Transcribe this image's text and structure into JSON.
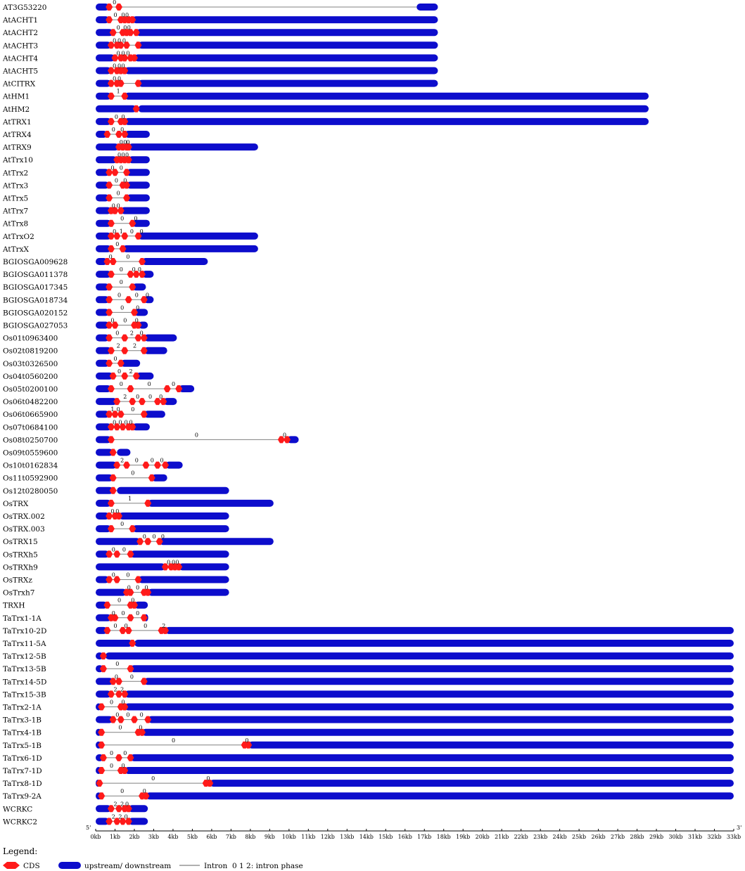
{
  "chart_data": {
    "type": "gene_structure",
    "x_unit": "kb",
    "xlim": [
      0,
      33
    ],
    "x_ticks": [
      "0kb",
      "1kb",
      "2kb",
      "3kb",
      "4kb",
      "5kb",
      "6kb",
      "7kb",
      "8kb",
      "9kb",
      "10kb",
      "11kb",
      "12kb",
      "13kb",
      "14kb",
      "15kb",
      "16kb",
      "17kb",
      "18kb",
      "19kb",
      "20kb",
      "21kb",
      "22kb",
      "23kb",
      "24kb",
      "25kb",
      "26kb",
      "27kb",
      "28kb",
      "29kb",
      "30kb",
      "31kb",
      "32kb",
      "33kb"
    ],
    "five_prime_label": "5'",
    "three_prime_label": "3'",
    "genes": [
      {
        "name": "AT3G53220",
        "length": 17.7,
        "utr5": 0.7,
        "utr3": 16.6,
        "cds": [
          0.7,
          1.2
        ],
        "phases": [
          "0"
        ]
      },
      {
        "name": "AtACHT1",
        "length": 17.7,
        "utr5": 0.7,
        "utr3": 1.9,
        "cds": [
          0.7,
          1.3,
          1.5,
          1.7,
          1.9
        ],
        "phases": [
          "0",
          "0",
          "0"
        ]
      },
      {
        "name": "AtACHT2",
        "length": 17.7,
        "utr5": 0.9,
        "utr3": 2.1,
        "cds": [
          0.9,
          1.4,
          1.6,
          1.8,
          2.1
        ],
        "phases": [
          "0",
          "0",
          "0"
        ]
      },
      {
        "name": "AtACHT3",
        "length": 17.7,
        "utr5": 0.8,
        "utr3": 2.2,
        "cds": [
          0.8,
          1.1,
          1.3,
          1.6,
          2.2
        ],
        "phases": [
          "0",
          "0",
          "0"
        ]
      },
      {
        "name": "AtACHT4",
        "length": 17.7,
        "utr5": 1.0,
        "utr3": 2.0,
        "cds": [
          1.0,
          1.3,
          1.5,
          1.8,
          2.0
        ],
        "phases": [
          "0",
          "0",
          "0"
        ]
      },
      {
        "name": "AtACHT5",
        "length": 17.7,
        "utr5": 0.8,
        "utr3": 1.5,
        "cds": [
          0.8,
          1.1,
          1.3,
          1.5
        ],
        "phases": [
          "0",
          "0",
          "0"
        ]
      },
      {
        "name": "AtCITRX",
        "length": 17.7,
        "utr5": 0.8,
        "utr3": 2.2,
        "cds": [
          0.8,
          1.1,
          1.3,
          2.2
        ],
        "phases": [
          "0",
          "0"
        ]
      },
      {
        "name": "AtHM1",
        "length": 28.6,
        "utr5": 0.8,
        "utr3": 1.5,
        "cds": [
          0.8,
          1.5
        ],
        "phases": [
          "1"
        ]
      },
      {
        "name": "AtHM2",
        "length": 28.6,
        "utr5": 2.1,
        "utr3": 2.2,
        "cds": [
          2.1
        ],
        "phases": []
      },
      {
        "name": "AtTRX1",
        "length": 28.6,
        "utr5": 0.8,
        "utr3": 1.5,
        "cds": [
          0.8,
          1.3,
          1.5
        ],
        "phases": [
          "0",
          "0"
        ]
      },
      {
        "name": "AtTRX4",
        "length": 2.8,
        "utr5": 0.6,
        "utr3": 1.5,
        "cds": [
          0.6,
          1.2,
          1.5
        ],
        "phases": [
          "0",
          "0"
        ]
      },
      {
        "name": "AtTRX9",
        "length": 8.4,
        "utr5": 1.2,
        "utr3": 1.7,
        "cds": [
          1.2,
          1.4,
          1.6,
          1.7
        ],
        "phases": [
          "0",
          "0",
          "0"
        ]
      },
      {
        "name": "AtTrx10",
        "length": 2.8,
        "utr5": 1.1,
        "utr3": 1.7,
        "cds": [
          1.1,
          1.3,
          1.5,
          1.7
        ],
        "phases": [
          "0",
          "0",
          "0"
        ]
      },
      {
        "name": "AtTrx2",
        "length": 2.8,
        "utr5": 0.7,
        "utr3": 1.6,
        "cds": [
          0.7,
          1.0,
          1.6
        ],
        "phases": [
          "0",
          "0"
        ]
      },
      {
        "name": "AtTrx3",
        "length": 2.8,
        "utr5": 0.7,
        "utr3": 1.6,
        "cds": [
          0.7,
          1.4,
          1.6
        ],
        "phases": [
          "0",
          "0"
        ]
      },
      {
        "name": "AtTrx5",
        "length": 2.8,
        "utr5": 0.7,
        "utr3": 1.6,
        "cds": [
          0.7,
          1.6
        ],
        "phases": [
          "0"
        ]
      },
      {
        "name": "AtTrx7",
        "length": 2.8,
        "utr5": 0.8,
        "utr3": 1.3,
        "cds": [
          0.8,
          1.0,
          1.3
        ],
        "phases": [
          "0",
          "0"
        ]
      },
      {
        "name": "AtTrx8",
        "length": 2.8,
        "utr5": 0.8,
        "utr3": 1.9,
        "cds": [
          0.8,
          1.9
        ],
        "phases": [
          "0",
          "0"
        ]
      },
      {
        "name": "AtTrxO2",
        "length": 8.4,
        "utr5": 0.8,
        "utr3": 2.2,
        "cds": [
          0.8,
          1.1,
          1.5,
          2.2
        ],
        "phases": [
          "0",
          "1",
          "0",
          "0"
        ]
      },
      {
        "name": "AtTrxX",
        "length": 8.4,
        "utr5": 0.8,
        "utr3": 1.4,
        "cds": [
          0.8,
          1.4
        ],
        "phases": [
          "0"
        ]
      },
      {
        "name": "BGIOSGA009628",
        "length": 5.8,
        "utr5": 0.6,
        "utr3": 2.4,
        "cds": [
          0.6,
          0.9,
          2.4
        ],
        "phases": [
          "0",
          "0"
        ]
      },
      {
        "name": "BGIOSGA011378",
        "length": 3.0,
        "utr5": 0.8,
        "utr3": 2.4,
        "cds": [
          0.8,
          1.8,
          2.1,
          2.4
        ],
        "phases": [
          "0",
          "0",
          "0"
        ]
      },
      {
        "name": "BGIOSGA017345",
        "length": 2.6,
        "utr5": 0.7,
        "utr3": 1.9,
        "cds": [
          0.7,
          1.9
        ],
        "phases": [
          "0"
        ]
      },
      {
        "name": "BGIOSGA018734",
        "length": 3.0,
        "utr5": 0.7,
        "utr3": 2.5,
        "cds": [
          0.7,
          1.7,
          2.5
        ],
        "phases": [
          "0",
          "0",
          "0"
        ]
      },
      {
        "name": "BGIOSGA020152",
        "length": 2.7,
        "utr5": 0.7,
        "utr3": 2.0,
        "cds": [
          0.7,
          2.0
        ],
        "phases": [
          "0",
          "0"
        ]
      },
      {
        "name": "BGIOSGA027053",
        "length": 2.7,
        "utr5": 0.7,
        "utr3": 2.2,
        "cds": [
          0.7,
          1.0,
          2.0,
          2.2
        ],
        "phases": [
          "0",
          "0",
          "0"
        ]
      },
      {
        "name": "Os01t0963400",
        "length": 4.2,
        "utr5": 0.7,
        "utr3": 2.5,
        "cds": [
          0.7,
          1.5,
          2.2,
          2.5
        ],
        "phases": [
          "0",
          "2",
          "0"
        ]
      },
      {
        "name": "Os02t0819200",
        "length": 3.7,
        "utr5": 0.8,
        "utr3": 2.5,
        "cds": [
          0.8,
          1.5,
          2.5
        ],
        "phases": [
          "2",
          "2"
        ]
      },
      {
        "name": "Os03t0326500",
        "length": 2.3,
        "utr5": 0.7,
        "utr3": 1.3,
        "cds": [
          0.7,
          1.3
        ],
        "phases": [
          "0"
        ]
      },
      {
        "name": "Os04t0560200",
        "length": 3.0,
        "utr5": 0.9,
        "utr3": 2.1,
        "cds": [
          0.9,
          1.5,
          2.1
        ],
        "phases": [
          "0",
          "2"
        ]
      },
      {
        "name": "Os05t0200100",
        "length": 5.1,
        "utr5": 0.8,
        "utr3": 4.3,
        "cds": [
          0.8,
          1.8,
          3.7,
          4.3
        ],
        "phases": [
          "0",
          "0",
          "0"
        ]
      },
      {
        "name": "Os06t0482200",
        "length": 4.2,
        "utr5": 1.1,
        "utr3": 3.5,
        "cds": [
          1.1,
          1.9,
          2.4,
          3.2,
          3.5
        ],
        "phases": [
          "2",
          "0",
          "0",
          "0"
        ]
      },
      {
        "name": "Os06t0665900",
        "length": 3.6,
        "utr5": 0.7,
        "utr3": 2.5,
        "cds": [
          0.7,
          1.0,
          1.3,
          2.5
        ],
        "phases": [
          "1",
          "0",
          "0"
        ]
      },
      {
        "name": "Os07t0684100",
        "length": 2.8,
        "utr5": 0.8,
        "utr3": 1.9,
        "cds": [
          0.8,
          1.1,
          1.4,
          1.7,
          1.9
        ],
        "phases": [
          "0",
          "0",
          "0",
          "0"
        ]
      },
      {
        "name": "Os08t0250700",
        "length": 10.5,
        "utr5": 0.8,
        "utr3": 9.9,
        "cds": [
          0.8,
          9.6,
          9.9
        ],
        "phases": [
          "0",
          "0"
        ]
      },
      {
        "name": "Os09t0559600",
        "length": 1.8,
        "utr5": 0.9,
        "utr3": 1.1,
        "cds": [
          0.9
        ],
        "phases": []
      },
      {
        "name": "Os10t0162834",
        "length": 4.5,
        "utr5": 1.1,
        "utr3": 3.6,
        "cds": [
          1.1,
          1.6,
          2.6,
          3.2,
          3.6
        ],
        "phases": [
          "2",
          "0",
          "0",
          "0"
        ]
      },
      {
        "name": "Os11t0592900",
        "length": 3.7,
        "utr5": 0.9,
        "utr3": 2.9,
        "cds": [
          0.9,
          2.9
        ],
        "phases": [
          "0"
        ]
      },
      {
        "name": "Os12t0280050",
        "length": 6.9,
        "utr5": 0.9,
        "utr3": 1.1,
        "cds": [
          0.9
        ],
        "phases": []
      },
      {
        "name": "OsTRX",
        "length": 9.2,
        "utr5": 0.8,
        "utr3": 2.7,
        "cds": [
          0.8,
          2.7
        ],
        "phases": [
          "1"
        ]
      },
      {
        "name": "OsTRX.002",
        "length": 6.9,
        "utr5": 0.7,
        "utr3": 1.2,
        "cds": [
          0.7,
          1.0,
          1.2
        ],
        "phases": [
          "0",
          "0"
        ]
      },
      {
        "name": "OsTRX.003",
        "length": 6.9,
        "utr5": 0.8,
        "utr3": 1.9,
        "cds": [
          0.8,
          1.9
        ],
        "phases": [
          "0"
        ]
      },
      {
        "name": "OsTRX15",
        "length": 9.2,
        "utr5": 2.3,
        "utr3": 3.3,
        "cds": [
          2.3,
          2.7,
          3.3
        ],
        "phases": [
          "0",
          "0",
          "0"
        ]
      },
      {
        "name": "OsTRXh5",
        "length": 6.9,
        "utr5": 0.7,
        "utr3": 1.8,
        "cds": [
          0.7,
          1.1,
          1.8
        ],
        "phases": [
          "0",
          "0"
        ]
      },
      {
        "name": "OsTRXh9",
        "length": 6.9,
        "utr5": 3.6,
        "utr3": 4.3,
        "cds": [
          3.6,
          3.9,
          4.1,
          4.3
        ],
        "phases": [
          "0",
          "0",
          "0"
        ]
      },
      {
        "name": "OsTRXz",
        "length": 6.9,
        "utr5": 0.7,
        "utr3": 2.2,
        "cds": [
          0.7,
          1.1,
          2.2
        ],
        "phases": [
          "0",
          "0"
        ]
      },
      {
        "name": "OsTrxh7",
        "length": 6.9,
        "utr5": 1.6,
        "utr3": 2.7,
        "cds": [
          1.6,
          1.8,
          2.5,
          2.7
        ],
        "phases": [
          "0",
          "0",
          "0"
        ]
      },
      {
        "name": "TRXH",
        "length": 2.7,
        "utr5": 0.6,
        "utr3": 2.0,
        "cds": [
          0.6,
          1.8,
          2.0
        ],
        "phases": [
          "0",
          "0"
        ]
      },
      {
        "name": "TaTrx1-1A",
        "length": 2.6,
        "utr5": 0.8,
        "utr3": 2.5,
        "cds": [
          0.8,
          1.0,
          1.8,
          2.5
        ],
        "phases": [
          "0",
          "0",
          "0"
        ]
      },
      {
        "name": "TaTrx10-2D",
        "length": 33.0,
        "utr5": 0.6,
        "utr3": 3.6,
        "cds": [
          0.6,
          1.4,
          1.7,
          3.4,
          3.6
        ],
        "phases": [
          "0",
          "0",
          "0",
          "2"
        ]
      },
      {
        "name": "TaTrx11-5A",
        "length": 33.0,
        "utr5": 1.9,
        "utr3": 2.0,
        "cds": [
          1.9
        ],
        "phases": []
      },
      {
        "name": "TaTrx12-5B",
        "length": 33.0,
        "utr5": 0.4,
        "utr3": 0.5,
        "cds": [
          0.4
        ],
        "phases": []
      },
      {
        "name": "TaTrx13-5B",
        "length": 33.0,
        "utr5": 0.4,
        "utr3": 1.8,
        "cds": [
          0.4,
          1.8
        ],
        "phases": [
          "0"
        ]
      },
      {
        "name": "TaTrx14-5D",
        "length": 33.0,
        "utr5": 0.9,
        "utr3": 2.5,
        "cds": [
          0.9,
          1.2,
          2.5
        ],
        "phases": [
          "0",
          "0"
        ]
      },
      {
        "name": "TaTrx15-3B",
        "length": 33.0,
        "utr5": 0.8,
        "utr3": 1.5,
        "cds": [
          0.8,
          1.2,
          1.5
        ],
        "phases": [
          "2",
          "2"
        ]
      },
      {
        "name": "TaTrx2-1A",
        "length": 33.0,
        "utr5": 0.3,
        "utr3": 1.5,
        "cds": [
          0.3,
          1.3,
          1.5
        ],
        "phases": [
          "0",
          "0"
        ]
      },
      {
        "name": "TaTrx3-1B",
        "length": 33.0,
        "utr5": 0.9,
        "utr3": 2.7,
        "cds": [
          0.9,
          1.3,
          2.0,
          2.7
        ],
        "phases": [
          "0",
          "0",
          "0"
        ]
      },
      {
        "name": "TaTrx4-1B",
        "length": 33.0,
        "utr5": 0.3,
        "utr3": 2.4,
        "cds": [
          0.3,
          2.2,
          2.4
        ],
        "phases": [
          "0",
          "0"
        ]
      },
      {
        "name": "TaTrx5-1B",
        "length": 33.0,
        "utr5": 0.3,
        "utr3": 7.9,
        "cds": [
          0.3,
          7.7,
          7.9
        ],
        "phases": [
          "0",
          "0"
        ]
      },
      {
        "name": "TaTrx6-1D",
        "length": 33.0,
        "utr5": 0.4,
        "utr3": 1.8,
        "cds": [
          0.4,
          1.2,
          1.8
        ],
        "phases": [
          "0",
          "0"
        ]
      },
      {
        "name": "TaTrx7-1D",
        "length": 33.0,
        "utr5": 0.3,
        "utr3": 1.5,
        "cds": [
          0.3,
          1.3,
          1.5
        ],
        "phases": [
          "0",
          "0"
        ]
      },
      {
        "name": "TaTrx8-1D",
        "length": 33.0,
        "utr5": 0.2,
        "utr3": 5.9,
        "cds": [
          0.2,
          5.7,
          5.9
        ],
        "phases": [
          "0",
          "0"
        ]
      },
      {
        "name": "TaTrx9-2A",
        "length": 33.0,
        "utr5": 0.3,
        "utr3": 2.6,
        "cds": [
          0.3,
          2.4,
          2.6
        ],
        "phases": [
          "0",
          "0"
        ]
      },
      {
        "name": "WCRKC",
        "length": 2.7,
        "utr5": 0.8,
        "utr3": 1.7,
        "cds": [
          0.8,
          1.2,
          1.5,
          1.7
        ],
        "phases": [
          "2",
          "2",
          "0"
        ]
      },
      {
        "name": "WCRKC2",
        "length": 2.7,
        "utr5": 0.7,
        "utr3": 1.7,
        "cds": [
          0.7,
          1.1,
          1.4,
          1.7
        ],
        "phases": [
          "2",
          "2",
          "0"
        ]
      }
    ],
    "legend": {
      "title": "Legend:",
      "cds_label": "CDS",
      "utr_label": "upstream/ downstream",
      "intron_label": "Intron",
      "phase_label": "0 1 2: intron phase"
    },
    "colors": {
      "cds": "#ff1a1a",
      "utr": "#0d0dcc",
      "intron": "#808080",
      "text": "#000000"
    }
  }
}
